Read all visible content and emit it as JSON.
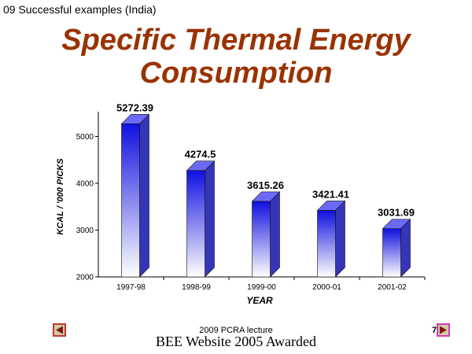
{
  "header": {
    "text": "09 Successful examples (India)"
  },
  "slide": {
    "title_line1": "Specific Thermal Energy",
    "title_line2": "Consumption"
  },
  "footer": {
    "lecture": "2009 PCRA lecture",
    "award": "BEE Website 2005 Awarded",
    "page_number": "7"
  },
  "nav": {
    "prev_icon": "triangle-left-icon",
    "next_icon": "triangle-right-icon"
  },
  "colors": {
    "title": "#993300",
    "bar_top": "#1010e0",
    "bar_bottom": "#ffffff",
    "bar_side": "#3535b8",
    "bar_cap": "#6a6af5"
  },
  "chart_data": {
    "type": "bar",
    "categories": [
      "1997-98",
      "1998-99",
      "1999-00",
      "2000-01",
      "2001-02"
    ],
    "values": [
      5272.39,
      4274.5,
      3615.26,
      3421.41,
      3031.69
    ],
    "value_labels": [
      "5272.39",
      "4274.5",
      "3615.26",
      "3421.41",
      "3031.69"
    ],
    "xlabel": "YEAR",
    "ylabel": "KCAL / '000 PICKS",
    "ylim": [
      2000,
      5500
    ],
    "yticks": [
      2000,
      3000,
      4000,
      5000
    ],
    "grid": false,
    "legend": "none"
  }
}
